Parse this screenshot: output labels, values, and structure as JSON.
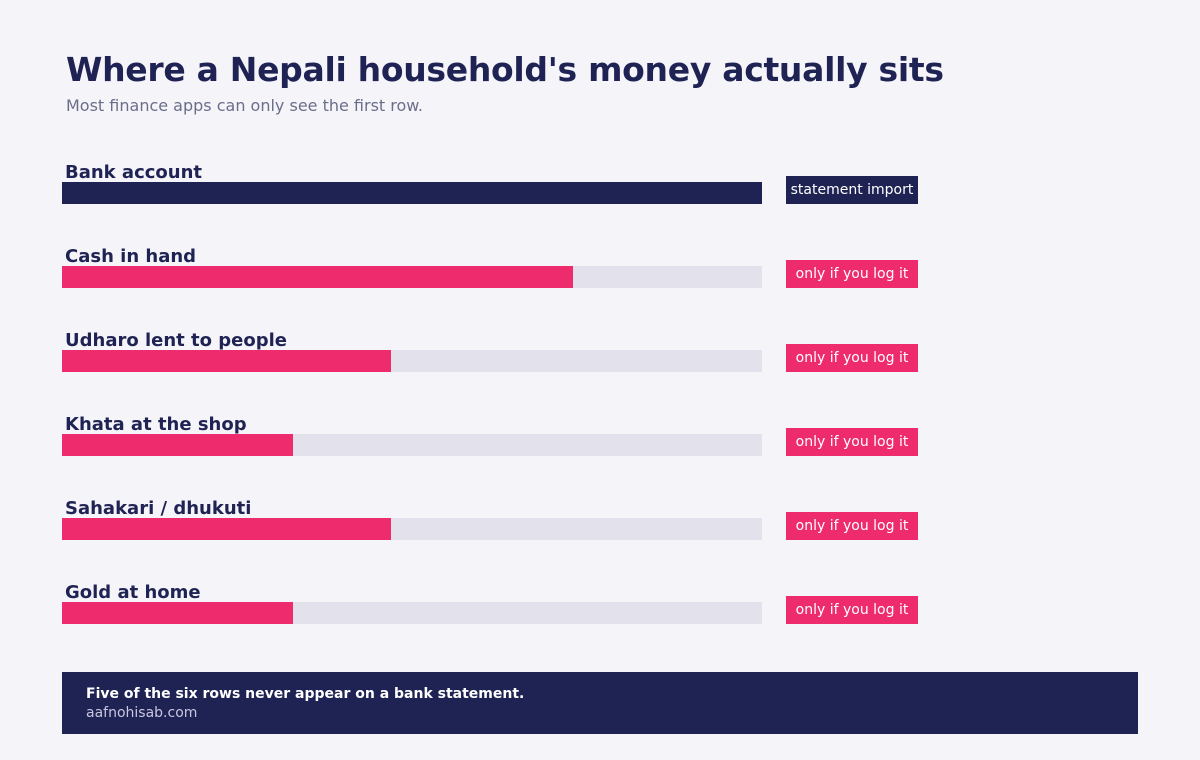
{
  "header": {
    "title": "Where a Nepali household's money actually sits",
    "subtitle": "Most finance apps can only see the first row."
  },
  "colors": {
    "visible": "#1f2354",
    "hidden": "#ee2b6c",
    "track": "#e3e2ec",
    "background": "#f5f4f9"
  },
  "chart_data": {
    "type": "bar",
    "orientation": "horizontal",
    "title": "Where a Nepali household's money actually sits",
    "subtitle": "Most finance apps can only see the first row.",
    "categories": [
      "Bank account",
      "Cash in hand",
      "Udharo lent to people",
      "Khata at the shop",
      "Sahakari / dhukuti",
      "Gold at home"
    ],
    "values": [
      100,
      73,
      47,
      33,
      47,
      33
    ],
    "value_unit": "percent of bar",
    "xlim": [
      0,
      100
    ],
    "tags": [
      "statement import",
      "only if you log it",
      "only if you log it",
      "only if you log it",
      "only if you log it",
      "only if you log it"
    ],
    "bar_colors": [
      "#1f2354",
      "#ee2b6c",
      "#ee2b6c",
      "#ee2b6c",
      "#ee2b6c",
      "#ee2b6c"
    ],
    "axis_labels": false,
    "grid": false,
    "legend": "none"
  },
  "footer": {
    "note": "Five of the six rows never appear on a bank statement.",
    "site": "aafnohisab.com"
  }
}
